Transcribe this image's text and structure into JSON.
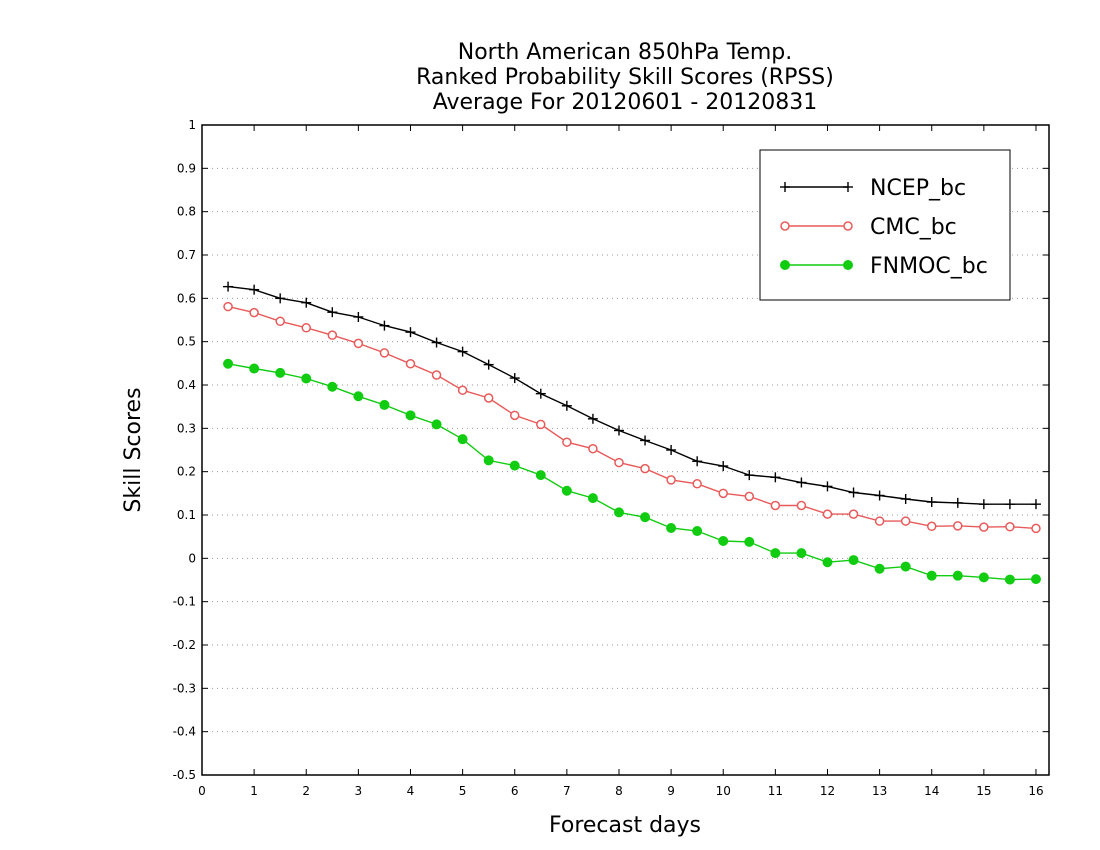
{
  "chart_data": {
    "type": "line",
    "title": [
      "North American 850hPa Temp.",
      "Ranked Probability Skill Scores (RPSS)",
      "Average For 20120601 - 20120831"
    ],
    "xlabel": "Forecast days",
    "ylabel": "Skill Scores",
    "xlim": [
      0,
      16.25
    ],
    "ylim": [
      -0.5,
      1
    ],
    "xticks": [
      0,
      1,
      2,
      3,
      4,
      5,
      6,
      7,
      8,
      9,
      10,
      11,
      12,
      13,
      14,
      15,
      16
    ],
    "yticks": [
      -0.5,
      -0.4,
      -0.3,
      -0.2,
      -0.1,
      0,
      0.1,
      0.2,
      0.3,
      0.4,
      0.5,
      0.6,
      0.7,
      0.8,
      0.9,
      1
    ],
    "grid": "horizontal dotted",
    "legend_position": "top-right",
    "x": [
      0.5,
      1,
      1.5,
      2,
      2.5,
      3,
      3.5,
      4,
      4.5,
      5,
      5.5,
      6,
      6.5,
      7,
      7.5,
      8,
      8.5,
      9,
      9.5,
      10,
      10.5,
      11,
      11.5,
      12,
      12.5,
      13,
      13.5,
      14,
      14.5,
      15,
      15.5,
      16
    ],
    "series": [
      {
        "name": "NCEP_bc",
        "color": "#000000",
        "marker": "plus",
        "values": [
          0.627,
          0.62,
          0.6,
          0.59,
          0.568,
          0.557,
          0.537,
          0.522,
          0.498,
          0.477,
          0.447,
          0.416,
          0.38,
          0.352,
          0.322,
          0.295,
          0.272,
          0.25,
          0.224,
          0.213,
          0.192,
          0.187,
          0.175,
          0.166,
          0.152,
          0.145,
          0.137,
          0.13,
          0.128,
          0.125,
          0.125,
          0.125
        ]
      },
      {
        "name": "CMC_bc",
        "color": "#e85a5a",
        "marker": "open-circle",
        "values": [
          0.581,
          0.567,
          0.547,
          0.532,
          0.515,
          0.496,
          0.474,
          0.449,
          0.423,
          0.388,
          0.37,
          0.33,
          0.309,
          0.268,
          0.253,
          0.221,
          0.207,
          0.181,
          0.172,
          0.15,
          0.143,
          0.122,
          0.122,
          0.102,
          0.102,
          0.086,
          0.086,
          0.074,
          0.075,
          0.072,
          0.073,
          0.069
        ]
      },
      {
        "name": "FNMOC_bc",
        "color": "#11cc11",
        "marker": "filled-circle",
        "values": [
          0.449,
          0.438,
          0.428,
          0.415,
          0.396,
          0.374,
          0.354,
          0.33,
          0.309,
          0.275,
          0.226,
          0.214,
          0.192,
          0.156,
          0.139,
          0.106,
          0.095,
          0.07,
          0.063,
          0.04,
          0.038,
          0.012,
          0.012,
          -0.009,
          -0.004,
          -0.024,
          -0.019,
          -0.04,
          -0.04,
          -0.044,
          -0.049,
          -0.048
        ]
      }
    ]
  }
}
